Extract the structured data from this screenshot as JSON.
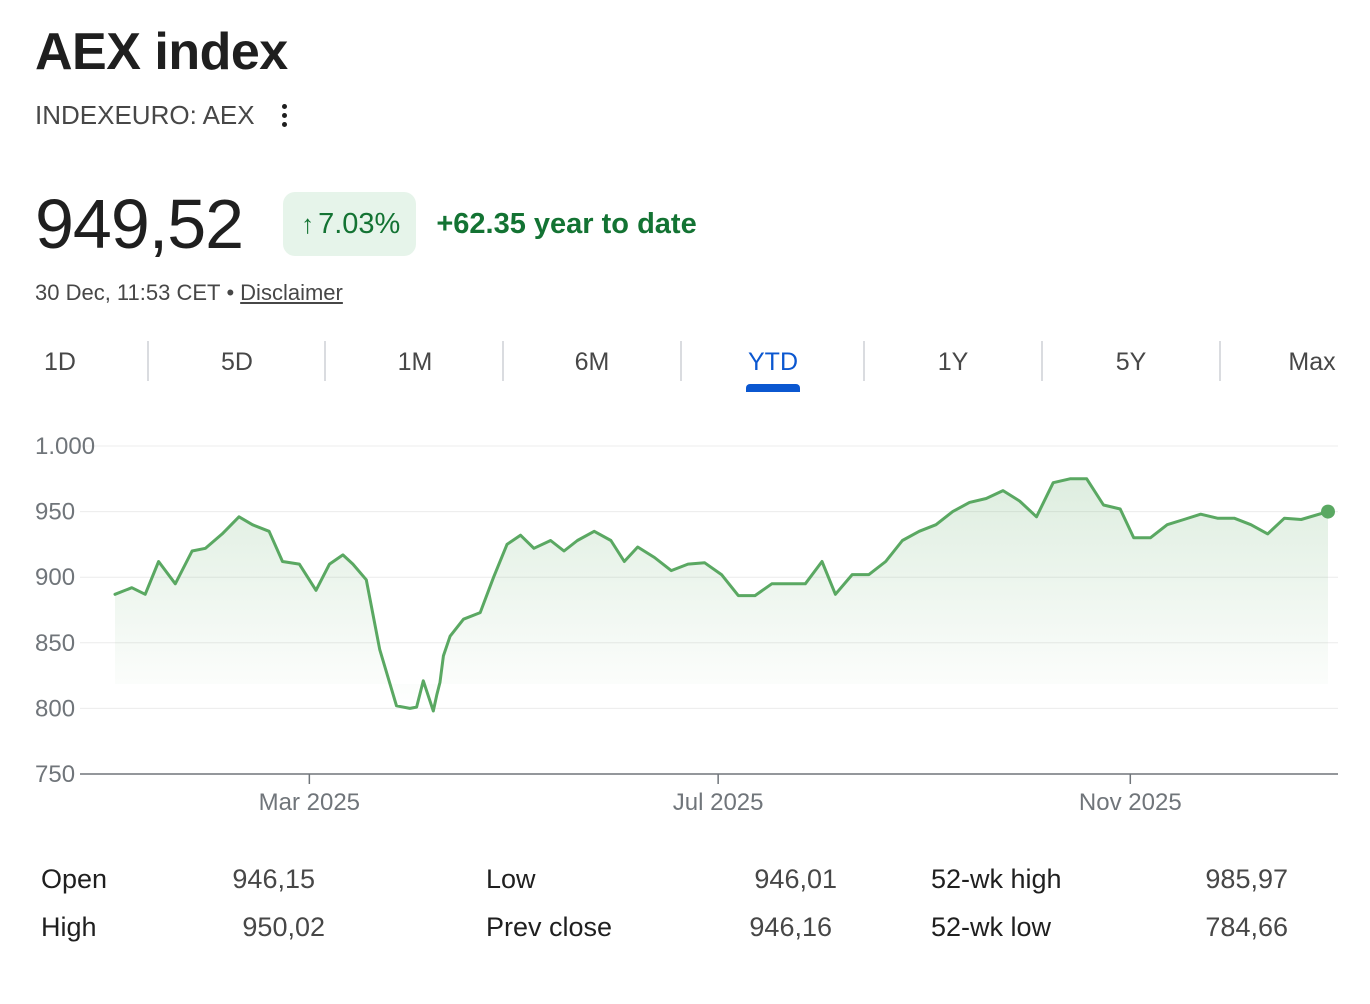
{
  "header": {
    "title": "AEX index",
    "ticker": "INDEXEURO: AEX",
    "more_icon": "more-vert-icon"
  },
  "quote": {
    "price": "949,52",
    "change_percent": "7.03%",
    "change_arrow": "↑",
    "change_text": "+62.35 year to date",
    "timestamp": "30 Dec, 11:53 CET",
    "separator": "•",
    "disclaimer": "Disclaimer"
  },
  "tabs": [
    {
      "label": "1D",
      "active": false
    },
    {
      "label": "5D",
      "active": false
    },
    {
      "label": "1M",
      "active": false
    },
    {
      "label": "6M",
      "active": false
    },
    {
      "label": "YTD",
      "active": true
    },
    {
      "label": "1Y",
      "active": false
    },
    {
      "label": "5Y",
      "active": false
    },
    {
      "label": "Max",
      "active": false
    }
  ],
  "colors": {
    "positive": "#137333",
    "line": "#5aa862",
    "accent": "#0b57d0",
    "badge_bg": "#e6f4ea"
  },
  "chart_data": {
    "type": "area",
    "title": "",
    "xlabel": "",
    "ylabel": "",
    "ylim": [
      750,
      1000
    ],
    "yticks": [
      750,
      800,
      850,
      900,
      950,
      1000
    ],
    "ytick_labels": [
      "750",
      "800",
      "850",
      "900",
      "950",
      "1.000"
    ],
    "xlim": [
      "2025-01-02",
      "2025-12-30"
    ],
    "xticks": [
      {
        "date": "2025-03-01",
        "label": "Mar 2025"
      },
      {
        "date": "2025-07-01",
        "label": "Jul 2025"
      },
      {
        "date": "2025-11-01",
        "label": "Nov 2025"
      }
    ],
    "grid": true,
    "legend": "none",
    "series": [
      {
        "x": [
          "2025-01-02",
          "2025-01-07",
          "2025-01-11",
          "2025-01-15",
          "2025-01-20",
          "2025-01-25",
          "2025-01-29",
          "2025-02-03",
          "2025-02-08",
          "2025-02-12",
          "2025-02-17",
          "2025-02-21",
          "2025-02-26",
          "2025-03-03",
          "2025-03-07",
          "2025-03-11",
          "2025-03-14",
          "2025-03-18",
          "2025-03-22",
          "2025-03-27",
          "2025-03-31",
          "2025-04-02",
          "2025-04-04",
          "2025-04-07",
          "2025-04-08",
          "2025-04-09",
          "2025-04-10",
          "2025-04-12",
          "2025-04-16",
          "2025-04-21",
          "2025-04-25",
          "2025-04-29",
          "2025-05-03",
          "2025-05-07",
          "2025-05-12",
          "2025-05-16",
          "2025-05-20",
          "2025-05-25",
          "2025-05-30",
          "2025-06-03",
          "2025-06-07",
          "2025-06-12",
          "2025-06-17",
          "2025-06-22",
          "2025-06-27",
          "2025-07-02",
          "2025-07-07",
          "2025-07-12",
          "2025-07-17",
          "2025-07-22",
          "2025-07-27",
          "2025-08-01",
          "2025-08-05",
          "2025-08-10",
          "2025-08-15",
          "2025-08-20",
          "2025-08-25",
          "2025-08-30",
          "2025-09-04",
          "2025-09-09",
          "2025-09-14",
          "2025-09-19",
          "2025-09-24",
          "2025-09-29",
          "2025-10-04",
          "2025-10-09",
          "2025-10-14",
          "2025-10-19",
          "2025-10-24",
          "2025-10-29",
          "2025-11-02",
          "2025-11-07",
          "2025-11-12",
          "2025-11-17",
          "2025-11-22",
          "2025-11-27",
          "2025-12-02",
          "2025-12-07",
          "2025-12-12",
          "2025-12-17",
          "2025-12-22",
          "2025-12-30"
        ],
        "values": [
          887,
          892,
          887,
          912,
          895,
          920,
          922,
          933,
          946,
          940,
          935,
          912,
          910,
          890,
          910,
          917,
          910,
          898,
          845,
          802,
          800,
          801,
          821,
          798,
          810,
          820,
          840,
          855,
          868,
          873,
          900,
          925,
          932,
          922,
          928,
          920,
          928,
          935,
          928,
          912,
          923,
          915,
          905,
          910,
          911,
          902,
          886,
          886,
          895,
          895,
          895,
          912,
          887,
          902,
          902,
          912,
          928,
          935,
          940,
          950,
          957,
          960,
          966,
          958,
          946,
          972,
          975,
          975,
          955,
          952,
          930,
          930,
          940,
          944,
          948,
          945,
          945,
          940,
          933,
          945,
          944,
          950
        ]
      }
    ]
  },
  "stats": [
    {
      "label": "Open",
      "value": "946,15"
    },
    {
      "label": "High",
      "value": "950,02"
    },
    {
      "label": "Low",
      "value": "946,01"
    },
    {
      "label": "Prev close",
      "value": "946,16"
    },
    {
      "label": "52-wk high",
      "value": "985,97"
    },
    {
      "label": "52-wk low",
      "value": "784,66"
    }
  ]
}
